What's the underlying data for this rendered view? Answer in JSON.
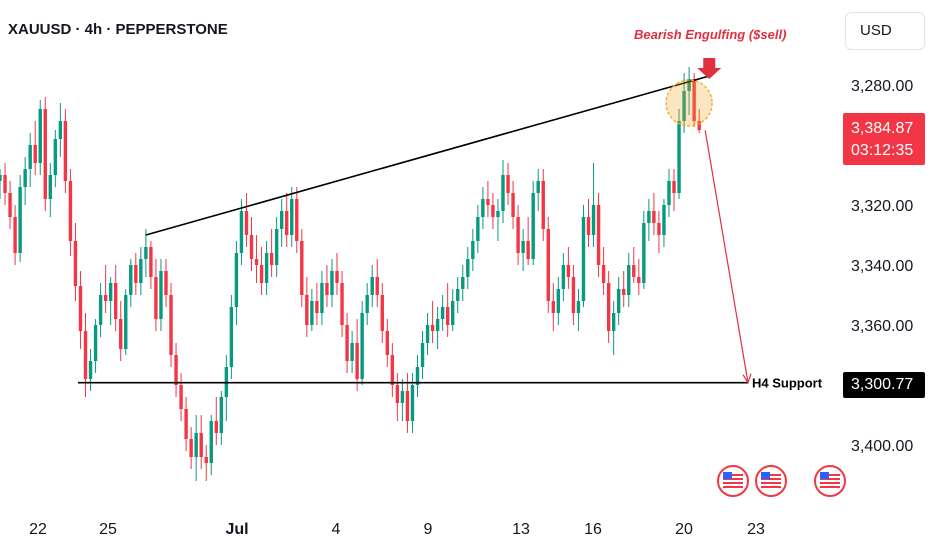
{
  "header": {
    "symbol_title": "XAUUSD · 4h · PEPPERSTONE",
    "currency_button": "USD"
  },
  "price_scale": {
    "ticks": [
      "3,400.00",
      "3,360.00",
      "3,340.00",
      "3,320.00",
      "3,280.00"
    ],
    "current_price": "3,384.87",
    "countdown": "03:12:35",
    "support_price": "3,300.77"
  },
  "time_axis": {
    "ticks": [
      "22",
      "25",
      "Jul",
      "4",
      "9",
      "13",
      "16",
      "20",
      "23"
    ]
  },
  "annotations": {
    "pattern_label": "Bearish Engulfing ($sell)",
    "support_label": "H4 Support"
  },
  "colors": {
    "up": "#089981",
    "down": "#f23645",
    "annotation": "#e03040",
    "support_line": "#000000",
    "highlight": "#f5a623"
  },
  "events": {
    "icon": "us-flag-icon",
    "count": 3
  },
  "chart_data": {
    "type": "candlestick",
    "title": "XAUUSD · 4h · PEPPERSTONE",
    "ylim": [
      3265,
      3418
    ],
    "y_ticks": [
      3280,
      3320,
      3340,
      3360,
      3400
    ],
    "x_ticks": [
      "22",
      "25",
      "Jul",
      "4",
      "9",
      "13",
      "16",
      "20",
      "23"
    ],
    "current_price": 3384.87,
    "support_level": 3300.77,
    "resistance_trendline": {
      "from": {
        "candle": 29,
        "price": 3350
      },
      "to": {
        "candle": 141,
        "price": 3403
      }
    },
    "projection": {
      "from": 3384.87,
      "to": 3300.77
    },
    "candles": [
      [
        3368,
        3372,
        3362,
        3370
      ],
      [
        3370,
        3374,
        3360,
        3364
      ],
      [
        3364,
        3368,
        3352,
        3356
      ],
      [
        3356,
        3360,
        3340,
        3344
      ],
      [
        3344,
        3370,
        3341,
        3366
      ],
      [
        3366,
        3376,
        3360,
        3372
      ],
      [
        3372,
        3384,
        3366,
        3380
      ],
      [
        3380,
        3388,
        3370,
        3374
      ],
      [
        3374,
        3395,
        3370,
        3392
      ],
      [
        3392,
        3396,
        3358,
        3362
      ],
      [
        3362,
        3374,
        3356,
        3370
      ],
      [
        3370,
        3385,
        3366,
        3382
      ],
      [
        3382,
        3394,
        3376,
        3388
      ],
      [
        3388,
        3392,
        3364,
        3368
      ],
      [
        3368,
        3372,
        3343,
        3348
      ],
      [
        3348,
        3354,
        3328,
        3333
      ],
      [
        3333,
        3338,
        3312,
        3318
      ],
      [
        3318,
        3324,
        3296,
        3302
      ],
      [
        3302,
        3312,
        3298,
        3308
      ],
      [
        3308,
        3322,
        3304,
        3320
      ],
      [
        3320,
        3334,
        3316,
        3330
      ],
      [
        3330,
        3340,
        3324,
        3328
      ],
      [
        3328,
        3336,
        3320,
        3334
      ],
      [
        3334,
        3340,
        3318,
        3322
      ],
      [
        3322,
        3328,
        3308,
        3312
      ],
      [
        3312,
        3332,
        3310,
        3330
      ],
      [
        3330,
        3342,
        3326,
        3340
      ],
      [
        3340,
        3344,
        3330,
        3334
      ],
      [
        3334,
        3346,
        3330,
        3342
      ],
      [
        3342,
        3352,
        3336,
        3346
      ],
      [
        3346,
        3348,
        3332,
        3336
      ],
      [
        3336,
        3342,
        3318,
        3322
      ],
      [
        3322,
        3342,
        3318,
        3338
      ],
      [
        3338,
        3342,
        3326,
        3330
      ],
      [
        3330,
        3334,
        3306,
        3310
      ],
      [
        3310,
        3314,
        3296,
        3300
      ],
      [
        3300,
        3304,
        3288,
        3292
      ],
      [
        3292,
        3296,
        3278,
        3282
      ],
      [
        3282,
        3286,
        3272,
        3276
      ],
      [
        3276,
        3290,
        3268,
        3284
      ],
      [
        3284,
        3290,
        3272,
        3276
      ],
      [
        3276,
        3280,
        3268,
        3274
      ],
      [
        3274,
        3290,
        3270,
        3288
      ],
      [
        3288,
        3296,
        3280,
        3284
      ],
      [
        3284,
        3298,
        3280,
        3296
      ],
      [
        3296,
        3310,
        3288,
        3306
      ],
      [
        3306,
        3330,
        3302,
        3326
      ],
      [
        3326,
        3348,
        3320,
        3344
      ],
      [
        3344,
        3362,
        3340,
        3358
      ],
      [
        3358,
        3364,
        3346,
        3350
      ],
      [
        3350,
        3356,
        3338,
        3342
      ],
      [
        3342,
        3350,
        3334,
        3340
      ],
      [
        3340,
        3346,
        3330,
        3334
      ],
      [
        3334,
        3348,
        3330,
        3344
      ],
      [
        3344,
        3352,
        3336,
        3340
      ],
      [
        3340,
        3356,
        3336,
        3352
      ],
      [
        3352,
        3362,
        3346,
        3358
      ],
      [
        3358,
        3364,
        3346,
        3350
      ],
      [
        3350,
        3366,
        3346,
        3362
      ],
      [
        3362,
        3366,
        3344,
        3348
      ],
      [
        3348,
        3352,
        3326,
        3330
      ],
      [
        3330,
        3336,
        3316,
        3320
      ],
      [
        3320,
        3332,
        3318,
        3328
      ],
      [
        3328,
        3334,
        3320,
        3324
      ],
      [
        3324,
        3338,
        3320,
        3334
      ],
      [
        3334,
        3340,
        3326,
        3330
      ],
      [
        3330,
        3342,
        3326,
        3338
      ],
      [
        3338,
        3344,
        3330,
        3334
      ],
      [
        3334,
        3338,
        3316,
        3320
      ],
      [
        3320,
        3324,
        3304,
        3308
      ],
      [
        3308,
        3318,
        3304,
        3314
      ],
      [
        3314,
        3322,
        3298,
        3302
      ],
      [
        3302,
        3328,
        3300,
        3324
      ],
      [
        3324,
        3334,
        3320,
        3330
      ],
      [
        3330,
        3340,
        3326,
        3336
      ],
      [
        3336,
        3342,
        3326,
        3330
      ],
      [
        3330,
        3334,
        3314,
        3318
      ],
      [
        3318,
        3322,
        3306,
        3310
      ],
      [
        3310,
        3314,
        3296,
        3300
      ],
      [
        3300,
        3304,
        3288,
        3294
      ],
      [
        3294,
        3302,
        3288,
        3298
      ],
      [
        3298,
        3304,
        3284,
        3288
      ],
      [
        3288,
        3304,
        3284,
        3300
      ],
      [
        3300,
        3310,
        3296,
        3306
      ],
      [
        3306,
        3318,
        3302,
        3314
      ],
      [
        3314,
        3324,
        3310,
        3320
      ],
      [
        3320,
        3328,
        3314,
        3318
      ],
      [
        3318,
        3326,
        3312,
        3322
      ],
      [
        3322,
        3330,
        3318,
        3326
      ],
      [
        3326,
        3334,
        3316,
        3320
      ],
      [
        3320,
        3332,
        3318,
        3328
      ],
      [
        3328,
        3336,
        3324,
        3332
      ],
      [
        3332,
        3340,
        3328,
        3336
      ],
      [
        3336,
        3346,
        3332,
        3342
      ],
      [
        3342,
        3352,
        3338,
        3348
      ],
      [
        3348,
        3360,
        3344,
        3356
      ],
      [
        3356,
        3366,
        3352,
        3362
      ],
      [
        3362,
        3368,
        3356,
        3360
      ],
      [
        3360,
        3364,
        3352,
        3356
      ],
      [
        3356,
        3362,
        3348,
        3358
      ],
      [
        3358,
        3375,
        3354,
        3370
      ],
      [
        3370,
        3374,
        3360,
        3364
      ],
      [
        3364,
        3368,
        3352,
        3356
      ],
      [
        3356,
        3360,
        3340,
        3344
      ],
      [
        3344,
        3352,
        3338,
        3348
      ],
      [
        3348,
        3356,
        3340,
        3342
      ],
      [
        3342,
        3368,
        3340,
        3364
      ],
      [
        3364,
        3372,
        3358,
        3368
      ],
      [
        3368,
        3372,
        3348,
        3352
      ],
      [
        3352,
        3356,
        3324,
        3328
      ],
      [
        3328,
        3334,
        3318,
        3324
      ],
      [
        3324,
        3336,
        3320,
        3332
      ],
      [
        3332,
        3344,
        3328,
        3340
      ],
      [
        3340,
        3346,
        3332,
        3336
      ],
      [
        3336,
        3340,
        3320,
        3324
      ],
      [
        3324,
        3332,
        3318,
        3328
      ],
      [
        3328,
        3360,
        3326,
        3356
      ],
      [
        3356,
        3362,
        3346,
        3350
      ],
      [
        3350,
        3374,
        3346,
        3360
      ],
      [
        3360,
        3364,
        3336,
        3340
      ],
      [
        3340,
        3346,
        3330,
        3334
      ],
      [
        3334,
        3338,
        3314,
        3318
      ],
      [
        3318,
        3328,
        3310,
        3324
      ],
      [
        3324,
        3336,
        3320,
        3332
      ],
      [
        3332,
        3338,
        3326,
        3330
      ],
      [
        3330,
        3344,
        3326,
        3340
      ],
      [
        3340,
        3346,
        3334,
        3336
      ],
      [
        3336,
        3342,
        3330,
        3334
      ],
      [
        3334,
        3358,
        3332,
        3354
      ],
      [
        3354,
        3362,
        3348,
        3358
      ],
      [
        3358,
        3364,
        3350,
        3354
      ],
      [
        3354,
        3358,
        3344,
        3350
      ],
      [
        3350,
        3362,
        3346,
        3360
      ],
      [
        3360,
        3372,
        3356,
        3368
      ],
      [
        3368,
        3372,
        3358,
        3364
      ],
      [
        3364,
        3392,
        3362,
        3388
      ],
      [
        3388,
        3404,
        3384,
        3398
      ],
      [
        3398,
        3406,
        3390,
        3402
      ],
      [
        3402,
        3404,
        3386,
        3388
      ],
      [
        3388,
        3392,
        3384,
        3385
      ]
    ]
  }
}
